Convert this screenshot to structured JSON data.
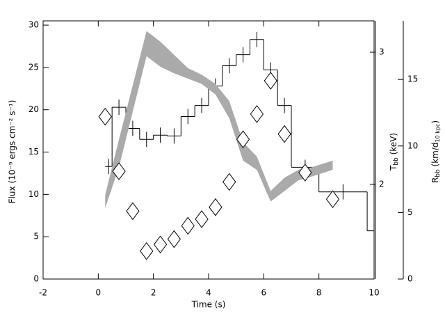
{
  "chart_data": {
    "type": "combo",
    "xlabel": "Time (s)",
    "ylabel": "Flux (10⁻⁹ ergs cm⁻² s⁻¹)",
    "y2label": {
      "main": "T",
      "sub": "bb",
      "rest": " (keV)"
    },
    "y3label": {
      "main": "R",
      "sub": "bb",
      "rest": " (km/d",
      "sub2": "10 kpc",
      "end": ")"
    },
    "xlim": [
      -2,
      10
    ],
    "xticks": [
      -2,
      0,
      2,
      4,
      6,
      8,
      10
    ],
    "ylim": [
      0,
      30.5
    ],
    "yticks": [
      0,
      5,
      10,
      15,
      20,
      25,
      30
    ],
    "y2lim": [
      1.284,
      3.237
    ],
    "y2ticks": [
      2,
      3
    ],
    "y3lim": [
      0,
      19.4
    ],
    "y3ticks": [
      0,
      5,
      10,
      15
    ],
    "series": [
      {
        "type": "step",
        "color": "#000000",
        "bins": [
          0.25,
          0.5,
          1.0,
          1.5,
          2.0,
          2.5,
          3.0,
          3.5,
          4.0,
          4.5,
          5.0,
          5.5,
          6.0,
          6.5,
          7.0,
          8.0,
          9.75,
          10
        ],
        "values": [
          13.3,
          20.3,
          17.8,
          16.5,
          17.0,
          16.9,
          19.2,
          20.5,
          22.8,
          25.2,
          26.5,
          28.3,
          24.7,
          20.5,
          13.2,
          10.3,
          5.7
        ],
        "errors": [
          0.9,
          0.9,
          0.9,
          0.9,
          0.9,
          0.9,
          0.9,
          0.9,
          0.9,
          0.9,
          0.9,
          0.9,
          0.9,
          0.9,
          0.9,
          0.9,
          null
        ]
      },
      {
        "type": "band",
        "axis": "y2",
        "color": "#aaaaaa",
        "x": [
          0.25,
          0.75,
          1.75,
          2.25,
          2.75,
          3.25,
          3.75,
          4.25,
          4.75,
          5.25,
          5.75,
          6.25,
          6.75,
          7.25,
          7.75,
          8.5
        ],
        "low": [
          1.82,
          2.13,
          2.97,
          2.89,
          2.84,
          2.8,
          2.76,
          2.68,
          2.5,
          2.18,
          2.11,
          1.87,
          1.95,
          2.03,
          2.06,
          2.11
        ],
        "high": [
          1.92,
          2.34,
          3.16,
          3.08,
          2.98,
          2.88,
          2.83,
          2.76,
          2.63,
          2.32,
          2.21,
          1.95,
          2.05,
          2.11,
          2.13,
          2.18
        ]
      },
      {
        "type": "scatter",
        "axis": "y3",
        "color": "#000000",
        "x": [
          0.25,
          0.75,
          1.25,
          1.75,
          2.25,
          2.75,
          3.25,
          3.75,
          4.25,
          4.75,
          5.25,
          5.75,
          6.25,
          6.75,
          7.5,
          8.5
        ],
        "values": [
          12.2,
          8.1,
          5.1,
          2.1,
          2.6,
          3.0,
          4.0,
          4.5,
          5.4,
          7.3,
          10.5,
          12.4,
          14.9,
          10.9,
          8.0,
          6.0
        ]
      }
    ]
  }
}
